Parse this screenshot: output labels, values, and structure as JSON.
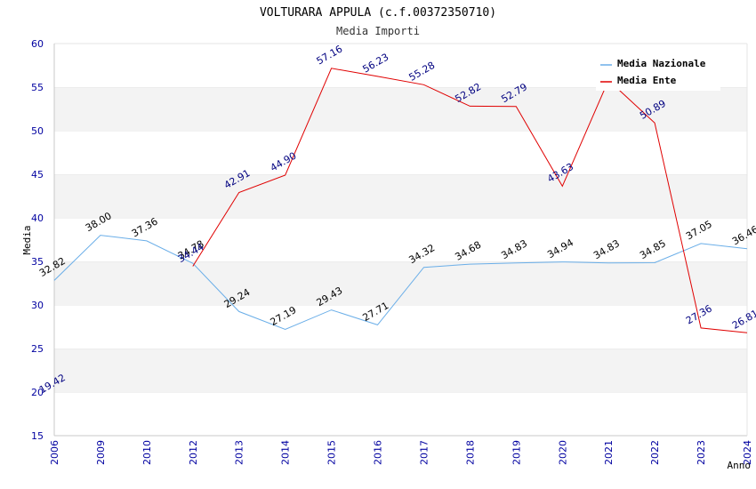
{
  "chart_data": {
    "type": "line",
    "title": "VOLTURARA APPULA (c.f.00372350710)",
    "subtitle": "Media Importi",
    "xlabel": "Anno",
    "ylabel": "Media",
    "ylim": [
      15,
      60
    ],
    "yticks": [
      15,
      20,
      25,
      30,
      35,
      40,
      45,
      50,
      55,
      60
    ],
    "categories": [
      "2006",
      "2009",
      "2010",
      "2012",
      "2013",
      "2014",
      "2015",
      "2016",
      "2017",
      "2018",
      "2019",
      "2020",
      "2021",
      "2022",
      "2023",
      "2024"
    ],
    "grid": "alternating horizontal bands",
    "legend_position": "top-right",
    "series": [
      {
        "name": "Media Nazionale",
        "color": "#6aaee8",
        "values": [
          32.82,
          38.0,
          37.36,
          34.78,
          29.24,
          27.19,
          29.43,
          27.71,
          34.32,
          34.68,
          34.83,
          34.94,
          34.83,
          34.85,
          37.05,
          36.46
        ],
        "labels": [
          "32.82",
          "38.00",
          "37.36",
          "34.78",
          "29.24",
          "27.19",
          "29.43",
          "27.71",
          "34.32",
          "34.68",
          "34.83",
          "34.94",
          "34.83",
          "34.85",
          "37.05",
          "36.46"
        ]
      },
      {
        "name": "Media Ente",
        "color": "#e00000",
        "values": [
          19.42,
          null,
          null,
          34.44,
          42.91,
          44.9,
          57.16,
          56.23,
          55.28,
          52.82,
          52.79,
          43.63,
          55.8,
          50.89,
          27.36,
          26.81
        ],
        "labels": [
          "19.42",
          null,
          null,
          "34.44",
          "42.91",
          "44.90",
          "57.16",
          "56.23",
          "55.28",
          "52.82",
          "52.79",
          "43.63",
          null,
          "50.89",
          "27.36",
          "26.81"
        ]
      }
    ]
  }
}
